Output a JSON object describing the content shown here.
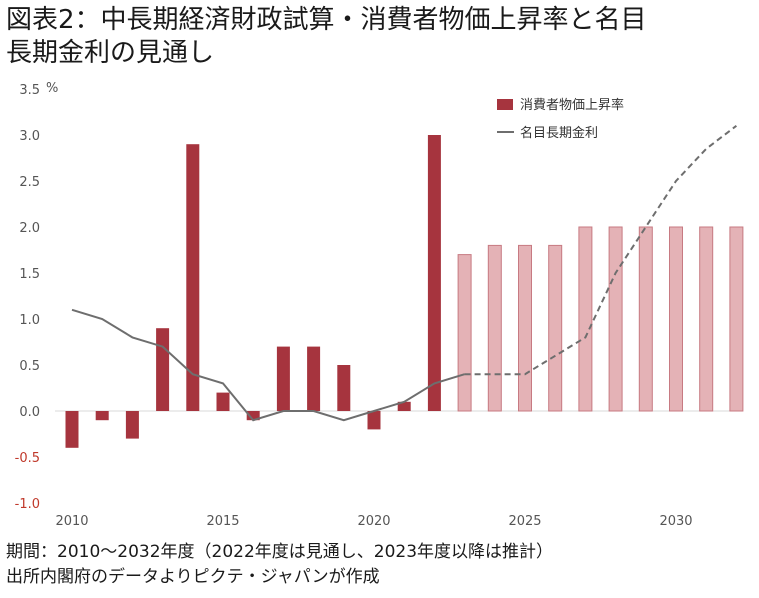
{
  "title_line1": "図表2：中長期経済財政試算・消費者物価上昇率と名目",
  "title_line2": "長期金利の見通し",
  "footer_line1": "期間：2010～2032年度（2022年度は見通し、2023年度以降は推計）",
  "footer_line2": "出所内閣府のデータよりピクテ・ジャパンが作成",
  "colors": {
    "bar_actual": "#a6343e",
    "bar_forecast": "#e4b2b6",
    "bar_forecast_edge": "#c77a82",
    "line": "#6e6e6e",
    "negative_tick": "#c0392b"
  },
  "chart_data": {
    "type": "bar+line",
    "y_unit": "%",
    "ylim": [
      -1.0,
      3.5
    ],
    "y_ticks": [
      "3.5",
      "3.0",
      "2.5",
      "2.0",
      "1.5",
      "1.0",
      "0.5",
      "0.0",
      "-0.5",
      "-1.0"
    ],
    "x_ticks": [
      "2010",
      "2015",
      "2020",
      "2025",
      "2030"
    ],
    "x": [
      2010,
      2011,
      2012,
      2013,
      2014,
      2015,
      2016,
      2017,
      2018,
      2019,
      2020,
      2021,
      2022,
      2023,
      2024,
      2025,
      2026,
      2027,
      2028,
      2029,
      2030,
      2031,
      2032
    ],
    "forecast_from": 2023,
    "legend_position": "top-right",
    "grid": false,
    "series": [
      {
        "name": "消費者物価上昇率",
        "kind": "bar",
        "values": [
          -0.4,
          -0.1,
          -0.3,
          0.9,
          2.9,
          0.2,
          -0.1,
          0.7,
          0.7,
          0.5,
          -0.2,
          0.1,
          3.0,
          1.7,
          1.8,
          1.8,
          1.8,
          2.0,
          2.0,
          2.0,
          2.0,
          2.0,
          2.0
        ]
      },
      {
        "name": "名目長期金利",
        "kind": "line",
        "values": [
          1.1,
          1.0,
          0.8,
          0.7,
          0.4,
          0.3,
          -0.1,
          0.0,
          0.0,
          -0.1,
          0.0,
          0.1,
          0.3,
          0.4,
          0.4,
          0.4,
          0.6,
          0.8,
          1.5,
          2.0,
          2.5,
          2.85,
          3.1
        ]
      }
    ]
  }
}
